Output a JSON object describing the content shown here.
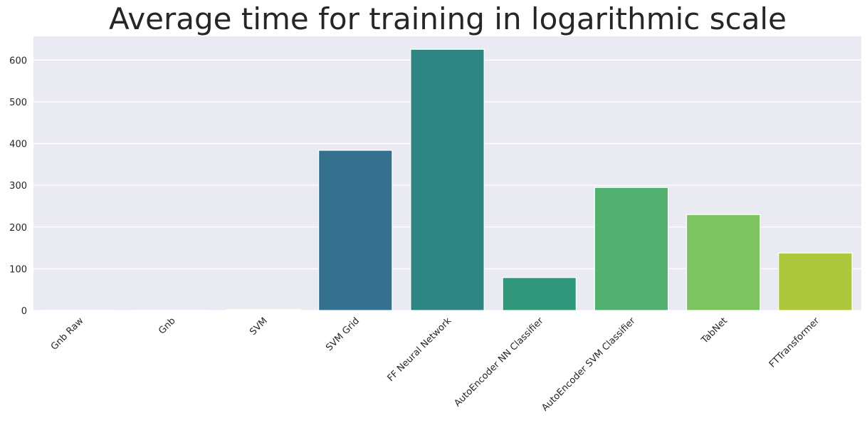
{
  "chart_data": {
    "type": "bar",
    "title": "Average time for training in logarithmic scale",
    "xlabel": "",
    "ylabel": "",
    "categories": [
      "Gnb Raw",
      "Gnb",
      "SVM",
      "SVM Grid",
      "FF Neural Network",
      "AutoEncoder NN Classifier",
      "AutoEncoder SVM Classifier",
      "TabNet",
      "FTTransformer"
    ],
    "values": [
      0.3,
      0.5,
      2,
      384,
      626,
      79,
      295,
      230,
      138
    ],
    "yticks": [
      0,
      100,
      200,
      300,
      400,
      500,
      600
    ],
    "ylim": [
      0,
      657
    ],
    "grid": true,
    "colors": [
      "#471365",
      "#482374",
      "#3f4a89",
      "#35708e",
      "#2e8581",
      "#30977b",
      "#52b071",
      "#7ec362",
      "#adc73b"
    ],
    "background": "#eaeaf2",
    "grid_color": "#ffffff"
  }
}
